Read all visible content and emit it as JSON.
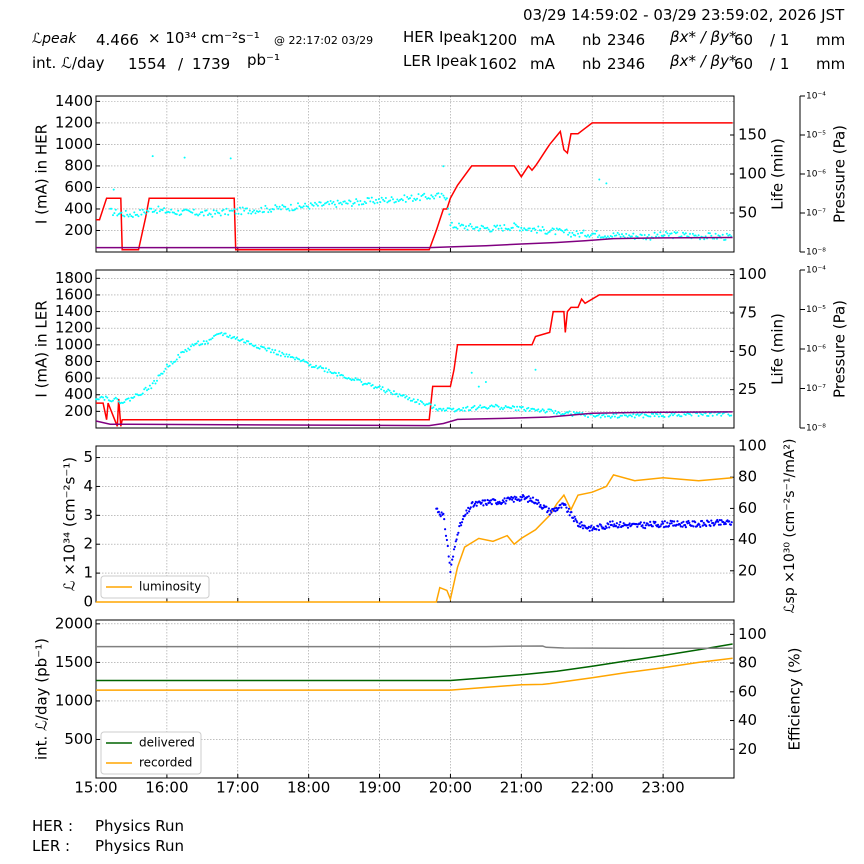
{
  "header": {
    "time_range": "03/29 14:59:02 - 03/29 23:59:02, 2026 JST",
    "lpeak_label": "ℒpeak",
    "lpeak_value": "4.466",
    "lpeak_unit": "× 10³⁴ cm⁻²s⁻¹",
    "lpeak_time": "@ 22:17:02 03/29",
    "intl_label": "int. ℒ/day",
    "intl_recorded": "1554",
    "intl_sep": "/",
    "intl_delivered": "1739",
    "intl_unit": "pb⁻¹",
    "her_ipeak_label": "HER Ipeak",
    "her_ipeak_value": "1200",
    "ler_ipeak_label": "LER Ipeak",
    "ler_ipeak_value": "1602",
    "ma_unit": "mA",
    "nb_label": "nb",
    "her_nb": "2346",
    "ler_nb": "2346",
    "beta_label": "βx* / βy*",
    "her_betax": "60",
    "her_betay": "/ 1",
    "ler_betax": "60",
    "ler_betay": "/ 1",
    "mm_unit": "mm"
  },
  "footer": {
    "her_label": "HER :",
    "her_status": "Physics Run",
    "ler_label": "LER :",
    "ler_status": "Physics Run"
  },
  "colors": {
    "current": "#ff0000",
    "life": "#00ffff",
    "pressure": "#800080",
    "luminosity": "#ffa500",
    "specific": "#0000ff",
    "delivered": "#006400",
    "recorded": "#ffa500",
    "efficiency": "#808080",
    "grid": "#999999"
  },
  "chart_data": [
    {
      "type": "line",
      "ylabel": "I (mA) in HER",
      "ylabel_right": "Life (min)",
      "ylabel_far_right": "Pressure (Pa)",
      "ylim": [
        0,
        1450
      ],
      "yticks": [
        200,
        400,
        600,
        800,
        1000,
        1200,
        1400
      ],
      "ylim_right": [
        0,
        200
      ],
      "yticks_right": [
        50,
        100,
        150
      ],
      "pressure_scale": "log",
      "pressure_ticks": [
        "10⁻⁸",
        "10⁻⁷",
        "10⁻⁶",
        "10⁻⁵",
        "10⁻⁴"
      ],
      "series": [
        {
          "kind": "current",
          "x": [
            15.0,
            15.05,
            15.15,
            15.35,
            15.37,
            15.6,
            15.7,
            15.75,
            16.95,
            16.97,
            19.7,
            19.8,
            19.9,
            19.95,
            20.0,
            20.1,
            20.3,
            20.9,
            21.0,
            21.1,
            21.15,
            21.2,
            21.25,
            21.35,
            21.4,
            21.55,
            21.6,
            21.65,
            21.7,
            21.8,
            21.9,
            22.0,
            23.98
          ],
          "y": [
            300,
            300,
            500,
            500,
            20,
            20,
            320,
            500,
            500,
            20,
            20,
            200,
            400,
            400,
            500,
            620,
            800,
            800,
            700,
            800,
            760,
            800,
            850,
            950,
            1000,
            1120,
            950,
            920,
            1100,
            1100,
            1150,
            1200,
            1200
          ]
        },
        {
          "kind": "life",
          "x": [
            15.2,
            15.3,
            15.5,
            15.7,
            15.8,
            16.0,
            16.2,
            16.4,
            16.6,
            16.8,
            16.95,
            19.85,
            19.9,
            19.95,
            20.0,
            20.3,
            20.6,
            20.9,
            21.2,
            21.4,
            21.6,
            21.8,
            22.0,
            22.2,
            22.5,
            22.8,
            23.1,
            23.4,
            23.7,
            23.98
          ],
          "y": [
            52,
            50,
            48,
            52,
            55,
            52,
            51,
            50,
            49,
            51,
            52,
            72,
            70,
            72,
            34,
            32,
            30,
            33,
            29,
            27,
            25,
            23,
            24,
            22,
            21,
            20,
            22,
            21,
            20,
            19
          ]
        },
        {
          "kind": "life_outlier",
          "x": [
            15.8,
            16.25,
            16.9,
            15.25,
            22.1,
            22.2,
            19.9
          ],
          "y": [
            123,
            121,
            120,
            80,
            93,
            88,
            110
          ]
        },
        {
          "kind": "pressure",
          "x": [
            15.0,
            19.7,
            20.0,
            20.5,
            21.0,
            21.5,
            21.9,
            22.3,
            23.0,
            23.98
          ],
          "y": [
            1.3e-08,
            1.3e-08,
            1.35e-08,
            1.45e-08,
            1.6e-08,
            1.75e-08,
            1.95e-08,
            2.2e-08,
            2.3e-08,
            2.35e-08
          ]
        }
      ]
    },
    {
      "type": "line",
      "ylabel": "I (mA) in LER",
      "ylabel_right": "Life (min)",
      "ylabel_far_right": "Pressure (Pa)",
      "ylim": [
        0,
        1900
      ],
      "yticks": [
        200,
        400,
        600,
        800,
        1000,
        1200,
        1400,
        1600,
        1800
      ],
      "ylim_right": [
        0,
        103
      ],
      "yticks_right": [
        25,
        50,
        75,
        100
      ],
      "pressure_scale": "log",
      "pressure_ticks": [
        "10⁻⁸",
        "10⁻⁷",
        "10⁻⁶",
        "10⁻⁵",
        "10⁻⁴"
      ],
      "series": [
        {
          "kind": "current",
          "x": [
            15.0,
            15.1,
            15.15,
            15.17,
            15.3,
            15.32,
            15.35,
            15.37,
            15.6,
            19.7,
            19.75,
            20.0,
            20.05,
            20.1,
            21.15,
            21.2,
            21.4,
            21.45,
            21.6,
            21.62,
            21.65,
            21.7,
            21.8,
            21.85,
            21.9,
            22.1,
            23.98
          ],
          "y": [
            300,
            300,
            100,
            300,
            20,
            350,
            20,
            100,
            100,
            100,
            500,
            500,
            700,
            1000,
            1000,
            1100,
            1150,
            1400,
            1400,
            1150,
            1400,
            1450,
            1450,
            1550,
            1500,
            1600,
            1600
          ]
        },
        {
          "kind": "life",
          "x": [
            15.0,
            15.1,
            15.4,
            15.6,
            15.8,
            16.0,
            16.2,
            16.4,
            16.6,
            16.75,
            19.8,
            20.0,
            20.3,
            20.6,
            20.9,
            21.2,
            21.5,
            21.8,
            22.0,
            22.4,
            22.8,
            23.2,
            23.6,
            23.98
          ],
          "y": [
            20,
            20,
            17,
            22,
            28,
            40,
            48,
            55,
            56,
            62,
            13,
            12,
            13,
            14,
            13,
            12,
            10,
            9,
            8,
            8,
            8,
            9,
            9,
            9
          ]
        },
        {
          "kind": "life_outlier",
          "x": [
            20.3,
            20.4,
            20.5,
            21.2
          ],
          "y": [
            36,
            27,
            30,
            38
          ]
        },
        {
          "kind": "pressure",
          "x": [
            15.0,
            15.2,
            19.7,
            19.9,
            20.1,
            21.0,
            21.4,
            21.8,
            22.0,
            22.5,
            23.0,
            23.98
          ],
          "y": [
            1.5e-08,
            1.25e-08,
            1.15e-08,
            1.3e-08,
            1.65e-08,
            1.8e-08,
            1.9e-08,
            2.2e-08,
            2.35e-08,
            2.45e-08,
            2.5e-08,
            2.55e-08
          ]
        }
      ]
    },
    {
      "type": "line",
      "ylabel": "ℒ ×10³⁴ (cm⁻²s⁻¹)",
      "ylabel_right": "ℒsp ×10³⁰ (cm⁻²s⁻¹/mA²)",
      "ylim": [
        0,
        5.4
      ],
      "yticks": [
        0,
        1,
        2,
        3,
        4,
        5
      ],
      "ylim_right": [
        0,
        100
      ],
      "yticks_right": [
        20,
        40,
        60,
        80,
        100
      ],
      "legend": "bottom-left",
      "series": [
        {
          "kind": "luminosity",
          "name": "luminosity",
          "x": [
            15.0,
            19.8,
            19.85,
            19.95,
            20.0,
            20.1,
            20.2,
            20.4,
            20.6,
            20.8,
            20.9,
            21.0,
            21.2,
            21.4,
            21.5,
            21.6,
            21.7,
            21.8,
            22.0,
            22.2,
            22.3,
            22.6,
            23.0,
            23.5,
            23.98
          ],
          "y": [
            0,
            0,
            0.5,
            0.4,
            0.1,
            1.2,
            1.9,
            2.2,
            2.1,
            2.3,
            2.0,
            2.2,
            2.5,
            3.0,
            3.4,
            3.7,
            3.2,
            3.7,
            3.8,
            4.0,
            4.4,
            4.2,
            4.3,
            4.2,
            4.3
          ]
        },
        {
          "kind": "specific",
          "x": [
            19.8,
            19.9,
            19.95,
            20.0,
            20.1,
            20.2,
            20.3,
            20.5,
            20.8,
            21.0,
            21.2,
            21.4,
            21.6,
            21.8,
            22.0,
            22.3,
            22.6,
            23.0,
            23.5,
            23.98
          ],
          "y": [
            60,
            55,
            40,
            20,
            45,
            55,
            62,
            64,
            65,
            67,
            65,
            58,
            62,
            50,
            47,
            50,
            49,
            50,
            50,
            51
          ]
        }
      ]
    },
    {
      "type": "line",
      "ylabel": "int. ℒ/day (pb⁻¹)",
      "ylabel_right": "Efficiency (%)",
      "ylim": [
        0,
        2050
      ],
      "yticks": [
        500,
        1000,
        1500,
        2000
      ],
      "ylim_right": [
        0,
        110
      ],
      "yticks_right": [
        20,
        40,
        60,
        80,
        100
      ],
      "legend": "bottom-left",
      "series": [
        {
          "kind": "delivered",
          "name": "delivered",
          "x": [
            15.0,
            20.0,
            20.5,
            21.0,
            21.5,
            22.0,
            22.5,
            23.0,
            23.5,
            23.98
          ],
          "y": [
            1265,
            1265,
            1300,
            1340,
            1385,
            1450,
            1520,
            1590,
            1665,
            1739
          ]
        },
        {
          "kind": "recorded",
          "name": "recorded",
          "x": [
            15.0,
            20.0,
            20.5,
            21.0,
            21.3,
            21.4,
            22.0,
            22.5,
            23.0,
            23.5,
            23.98
          ],
          "y": [
            1140,
            1140,
            1175,
            1210,
            1215,
            1225,
            1300,
            1370,
            1430,
            1500,
            1554
          ]
        },
        {
          "kind": "efficiency",
          "x": [
            15.0,
            20.0,
            20.5,
            21.0,
            21.3,
            21.35,
            21.6,
            22.5,
            23.98
          ],
          "y": [
            91.5,
            91.5,
            91.5,
            91.8,
            91.9,
            91.0,
            90.5,
            90.4,
            90.4
          ]
        }
      ]
    }
  ],
  "xaxis": {
    "xlim": [
      15.0,
      24.0
    ],
    "tick_values": [
      15,
      16,
      17,
      18,
      19,
      20,
      21,
      22,
      23
    ],
    "tick_labels": [
      "15:00",
      "16:00",
      "17:00",
      "18:00",
      "19:00",
      "20:00",
      "21:00",
      "22:00",
      "23:00"
    ]
  }
}
